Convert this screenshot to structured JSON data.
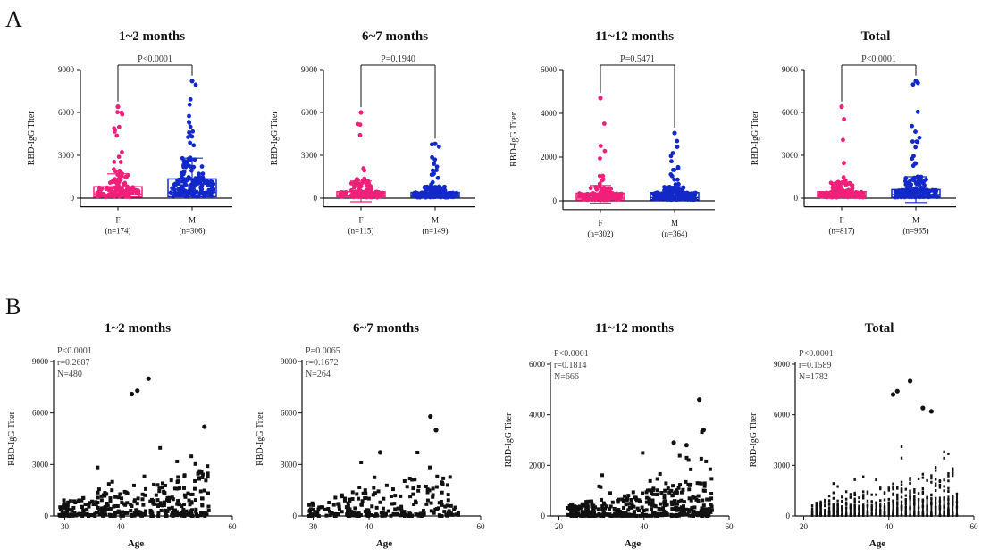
{
  "panel_labels": [
    "A",
    "B"
  ],
  "colors": {
    "female": "#f0207a",
    "male": "#1228c8",
    "scatter": "#111111",
    "axis": "#111111"
  },
  "chart_data": [
    {
      "type": "box",
      "panel": "A",
      "title": "1~2 months",
      "ylabel": "RBD-IgG Titer",
      "yticks": [
        0,
        3000,
        6000,
        9000
      ],
      "ylim": [
        -600,
        9000
      ],
      "p_text": "P<0.0001",
      "groups": [
        {
          "label": "F",
          "n_text": "(n=174)",
          "median": 250,
          "q1": 80,
          "q3": 800,
          "whisker_high": 1700,
          "whisker_low": 0,
          "max": 6400
        },
        {
          "label": "M",
          "n_text": "(n=306)",
          "median": 400,
          "q1": 100,
          "q3": 1350,
          "whisker_high": 2800,
          "whisker_low": 0,
          "max": 8200
        }
      ]
    },
    {
      "type": "box",
      "panel": "A",
      "title": "6~7 months",
      "ylabel": "RBD-IgG Titer",
      "yticks": [
        0,
        3000,
        6000,
        9000
      ],
      "ylim": [
        -600,
        9000
      ],
      "p_text": "P=0.1940",
      "groups": [
        {
          "label": "F",
          "n_text": "(n=115)",
          "median": 150,
          "q1": 50,
          "q3": 450,
          "whisker_high": 1200,
          "whisker_low": -250,
          "max": 6000
        },
        {
          "label": "M",
          "n_text": "(n=149)",
          "median": 150,
          "q1": 50,
          "q3": 400,
          "whisker_high": 800,
          "whisker_low": 0,
          "max": 3800
        }
      ]
    },
    {
      "type": "box",
      "panel": "A",
      "title": "11~12 months",
      "ylabel": "RBD-IgG Titer",
      "yticks": [
        0,
        2000,
        4000,
        6000
      ],
      "ylim": [
        -400,
        6000
      ],
      "p_text": "P=0.5471",
      "groups": [
        {
          "label": "F",
          "n_text": "(n=302)",
          "median": 120,
          "q1": 40,
          "q3": 350,
          "whisker_high": 700,
          "whisker_low": -100,
          "max": 4700
        },
        {
          "label": "M",
          "n_text": "(n=364)",
          "median": 150,
          "q1": 50,
          "q3": 380,
          "whisker_high": 650,
          "whisker_low": 0,
          "max": 3100
        }
      ]
    },
    {
      "type": "box",
      "panel": "A",
      "title": "Total",
      "ylabel": "RBD-IgG Titer",
      "yticks": [
        0,
        3000,
        6000,
        9000
      ],
      "ylim": [
        -600,
        9000
      ],
      "p_text": "P<0.0001",
      "groups": [
        {
          "label": "F",
          "n_text": "(n=817)",
          "median": 150,
          "q1": 50,
          "q3": 450,
          "whisker_high": 1100,
          "whisker_low": 0,
          "max": 6400
        },
        {
          "label": "M",
          "n_text": "(n=965)",
          "median": 250,
          "q1": 60,
          "q3": 600,
          "whisker_high": 1500,
          "whisker_low": -300,
          "max": 8200
        }
      ]
    },
    {
      "type": "scatter",
      "panel": "B",
      "title": "1~2 months",
      "xlabel": "Age",
      "ylabel": "RBD-IgG Titer",
      "xticks": [
        30,
        40,
        60
      ],
      "xlim": [
        28,
        60
      ],
      "yticks": [
        0,
        3000,
        6000,
        9000
      ],
      "ylim": [
        0,
        9000
      ],
      "stats": [
        "P<0.0001",
        "r=0.2687",
        "N=480"
      ],
      "highlights": [
        {
          "x": 45,
          "y": 8000
        },
        {
          "x": 43,
          "y": 7300
        },
        {
          "x": 42,
          "y": 7100
        },
        {
          "x": 55,
          "y": 5200
        }
      ]
    },
    {
      "type": "scatter",
      "panel": "B",
      "title": "6~7 months",
      "xlabel": "Age",
      "ylabel": "RBD-IgG Titer",
      "xticks": [
        30,
        40,
        60
      ],
      "xlim": [
        28,
        60
      ],
      "yticks": [
        0,
        3000,
        6000,
        9000
      ],
      "ylim": [
        0,
        9000
      ],
      "stats": [
        "P=0.0065",
        "r=0.1672",
        "N=264"
      ],
      "highlights": [
        {
          "x": 51,
          "y": 5800
        },
        {
          "x": 52,
          "y": 5000
        },
        {
          "x": 42,
          "y": 3700
        }
      ]
    },
    {
      "type": "scatter",
      "panel": "B",
      "title": "11~12 months",
      "xlabel": "Age",
      "ylabel": "RBD-IgG Titer",
      "xticks": [
        20,
        40,
        60
      ],
      "xlim": [
        18,
        60
      ],
      "yticks": [
        0,
        2000,
        4000,
        6000
      ],
      "ylim": [
        0,
        6000
      ],
      "stats": [
        "P<0.0001",
        "r=0.1814",
        "N=666"
      ],
      "highlights": [
        {
          "x": 53,
          "y": 4600
        },
        {
          "x": 54,
          "y": 3400
        },
        {
          "x": 47,
          "y": 2900
        },
        {
          "x": 50,
          "y": 2800
        }
      ]
    },
    {
      "type": "scatter",
      "panel": "B",
      "title": "Total",
      "xlabel": "Age",
      "ylabel": "RBD-IgG Titer",
      "xticks": [
        20,
        40,
        60
      ],
      "xlim": [
        18,
        60
      ],
      "yticks": [
        0,
        3000,
        6000,
        9000
      ],
      "ylim": [
        0,
        9000
      ],
      "stats": [
        "P<0.0001",
        "r=0.1589",
        "N=1782"
      ],
      "highlights": [
        {
          "x": 45,
          "y": 8000
        },
        {
          "x": 42,
          "y": 7400
        },
        {
          "x": 41,
          "y": 7200
        },
        {
          "x": 48,
          "y": 6400
        },
        {
          "x": 50,
          "y": 6200
        }
      ]
    }
  ]
}
